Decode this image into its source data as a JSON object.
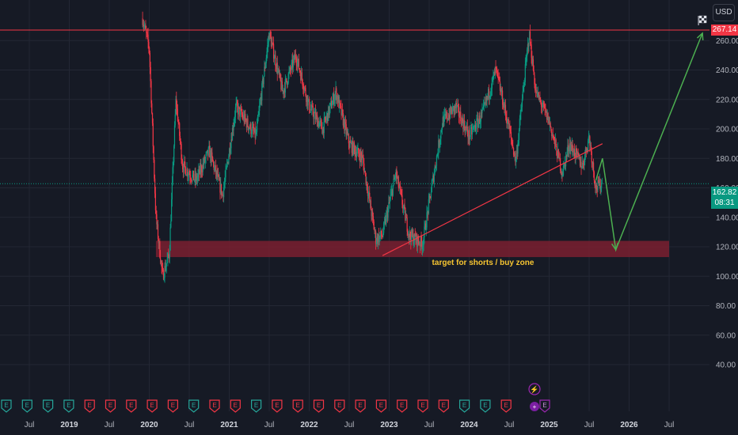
{
  "currency": "USD",
  "resistance_price_label": "267.14",
  "last_price_label": "162.82",
  "countdown_label": "08:31",
  "zone_label": "target for shorts / buy zone",
  "flag_icon": "checkered-flag-icon",
  "event_icons": [
    "earnings-E-icon",
    "dividend-D-icon",
    "flash-icon",
    "split-icon"
  ],
  "colors": {
    "background": "#161a25",
    "up_candle": "#089981",
    "down_candle": "#f23645",
    "resistance_line": "#f23645",
    "trend_line": "#f23645",
    "projection_arrow": "#4caf50",
    "zone_fill": "#7a2030",
    "zone_text": "#f7c531",
    "last_price_tag": "#089981",
    "resistance_tag": "#f23645"
  },
  "chart_data": {
    "type": "candlestick",
    "y_axis_ticks": [
      40,
      60,
      80,
      100,
      120,
      140,
      160,
      180,
      200,
      220,
      240,
      260
    ],
    "y_tick_labels": [
      "40.00",
      "60.00",
      "80.00",
      "100.00",
      "120.00",
      "140.00",
      "160.00",
      "180.00",
      "200.00",
      "220.00",
      "240.00",
      "260.00"
    ],
    "ylim": [
      34,
      275
    ],
    "x_axis_labels": [
      "Jul",
      "2019",
      "Jul",
      "2020",
      "Jul",
      "2021",
      "Jul",
      "2022",
      "Jul",
      "2023",
      "Jul",
      "2024",
      "Jul",
      "2025",
      "Jul",
      "2026",
      "Jul"
    ],
    "x_axis_dates": [
      "2018-07",
      "2019-01",
      "2019-07",
      "2020-01",
      "2020-07",
      "2021-01",
      "2021-07",
      "2022-01",
      "2022-07",
      "2023-01",
      "2023-07",
      "2024-01",
      "2024-07",
      "2025-01",
      "2025-07",
      "2026-01",
      "2026-07"
    ],
    "year_labels": [
      "2019",
      "2020",
      "2021",
      "2022",
      "2023",
      "2024",
      "2025",
      "2026"
    ],
    "price_path": [
      [
        "2019-12",
        275
      ],
      [
        "2020-01",
        255
      ],
      [
        "2020-02",
        140
      ],
      [
        "2020-03",
        100
      ],
      [
        "2020-04",
        115
      ],
      [
        "2020-05",
        220
      ],
      [
        "2020-06",
        175
      ],
      [
        "2020-08",
        165
      ],
      [
        "2020-10",
        185
      ],
      [
        "2020-12",
        155
      ],
      [
        "2021-02",
        215
      ],
      [
        "2021-05",
        195
      ],
      [
        "2021-07",
        265
      ],
      [
        "2021-09",
        225
      ],
      [
        "2021-11",
        250
      ],
      [
        "2022-01",
        215
      ],
      [
        "2022-03",
        200
      ],
      [
        "2022-05",
        225
      ],
      [
        "2022-07",
        190
      ],
      [
        "2022-09",
        180
      ],
      [
        "2022-11",
        125
      ],
      [
        "2022-12",
        128
      ],
      [
        "2023-02",
        170
      ],
      [
        "2023-04",
        128
      ],
      [
        "2023-06",
        122
      ],
      [
        "2023-07",
        150
      ],
      [
        "2023-09",
        205
      ],
      [
        "2023-11",
        215
      ],
      [
        "2024-01",
        195
      ],
      [
        "2024-03",
        210
      ],
      [
        "2024-05",
        240
      ],
      [
        "2024-07",
        200
      ],
      [
        "2024-08",
        178
      ],
      [
        "2024-10",
        265
      ],
      [
        "2024-11",
        225
      ],
      [
        "2025-01",
        205
      ],
      [
        "2025-03",
        170
      ],
      [
        "2025-04",
        190
      ],
      [
        "2025-06",
        175
      ],
      [
        "2025-07",
        195
      ],
      [
        "2025-08",
        160
      ],
      [
        "2025-09",
        163
      ]
    ],
    "resistance_line": 267.14,
    "last_price": 162.82,
    "support_zone": {
      "low": 113,
      "high": 124,
      "start": "2020-02",
      "end": "2026-07"
    },
    "trend_line": [
      [
        "2022-12",
        114
      ],
      [
        "2025-09",
        190
      ]
    ],
    "projection_path": [
      [
        "2025-08",
        165
      ],
      [
        "2025-09",
        180
      ],
      [
        "2025-11",
        118
      ],
      [
        "2026-12",
        265
      ]
    ]
  }
}
